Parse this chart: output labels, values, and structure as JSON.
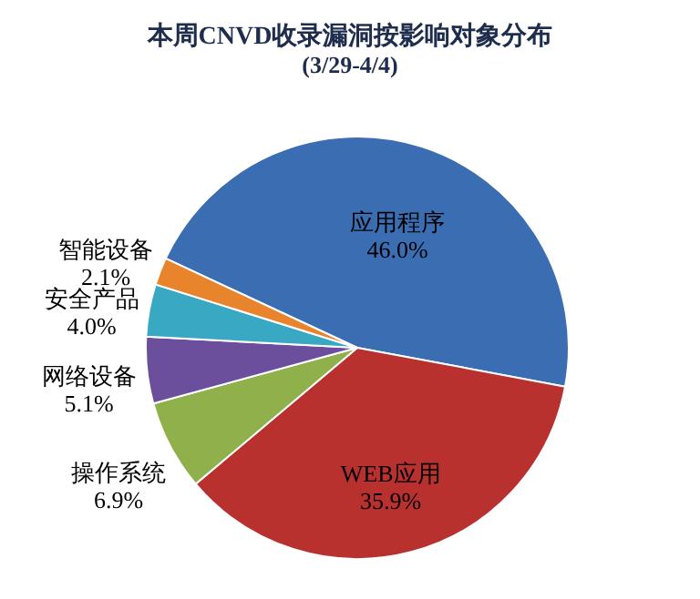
{
  "chart_data": {
    "type": "pie",
    "title": "本周CNVD收录漏洞按影响对象分布",
    "subtitle": "(3/29-4/4)",
    "categories": [
      "应用程序",
      "WEB应用",
      "操作系统",
      "网络设备",
      "安全产品",
      "智能设备"
    ],
    "values": [
      46.0,
      35.9,
      6.9,
      5.1,
      4.0,
      2.1
    ],
    "value_labels": [
      "46.0%",
      "35.9%",
      "6.9%",
      "5.1%",
      "4.0%",
      "2.1%"
    ],
    "colors": [
      "#3b6db3",
      "#b8312f",
      "#8fb04b",
      "#6b4f9c",
      "#39a8c3",
      "#e8842b"
    ]
  }
}
